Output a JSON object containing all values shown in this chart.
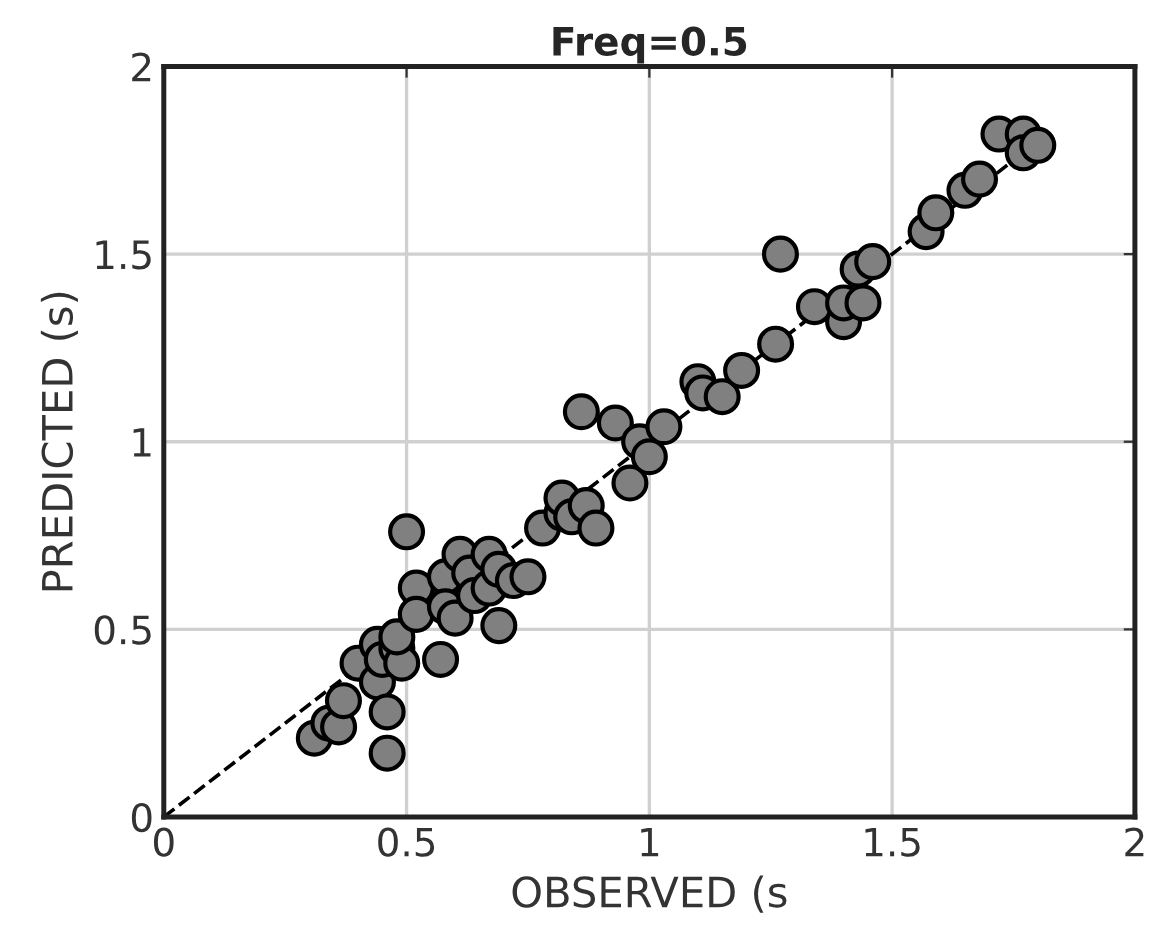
{
  "chart_data": {
    "type": "scatter",
    "title": "Freq=0.5",
    "xlabel": "OBSERVED (s",
    "ylabel": "PREDICTED (s)",
    "xlim": [
      0,
      2
    ],
    "ylim": [
      0,
      2
    ],
    "xticks": [
      0,
      0.5,
      1,
      1.5,
      2
    ],
    "yticks": [
      0,
      0.5,
      1,
      1.5,
      2
    ],
    "grid": true,
    "marker": "circle",
    "series": [
      {
        "color": "#808080",
        "x": [
          0.31,
          0.34,
          0.36,
          0.37,
          0.4,
          0.44,
          0.44,
          0.46,
          0.46,
          0.45,
          0.48,
          0.49,
          0.48,
          0.5,
          0.52,
          0.52,
          0.57,
          0.58,
          0.58,
          0.6,
          0.61,
          0.63,
          0.64,
          0.67,
          0.67,
          0.69,
          0.69,
          0.72,
          0.75,
          0.78,
          0.82,
          0.82,
          0.84,
          0.86,
          0.87,
          0.89,
          0.93,
          0.96,
          0.98,
          1.0,
          1.03,
          1.1,
          1.11,
          1.15,
          1.19,
          1.26,
          1.27,
          1.34,
          1.4,
          1.4,
          1.44,
          1.43,
          1.46,
          1.57,
          1.59,
          1.65,
          1.68,
          1.72,
          1.77,
          1.77,
          1.8
        ],
        "values": [
          0.21,
          0.25,
          0.24,
          0.31,
          0.41,
          0.36,
          0.46,
          0.28,
          0.17,
          0.42,
          0.45,
          0.41,
          0.48,
          0.76,
          0.61,
          0.54,
          0.42,
          0.64,
          0.56,
          0.53,
          0.7,
          0.65,
          0.59,
          0.7,
          0.61,
          0.51,
          0.66,
          0.63,
          0.64,
          0.77,
          0.81,
          0.85,
          0.8,
          1.08,
          0.83,
          0.77,
          1.05,
          0.89,
          1.0,
          0.96,
          1.04,
          1.16,
          1.13,
          1.12,
          1.19,
          1.26,
          1.5,
          1.36,
          1.32,
          1.37,
          1.37,
          1.46,
          1.48,
          1.56,
          1.61,
          1.67,
          1.7,
          1.82,
          1.82,
          1.77,
          1.79
        ]
      },
      {
        "type": "line",
        "color": "#000000",
        "line_style": "dashed",
        "marker": "none",
        "x": [
          0,
          1.8
        ],
        "values": [
          0,
          1.8
        ]
      }
    ]
  }
}
